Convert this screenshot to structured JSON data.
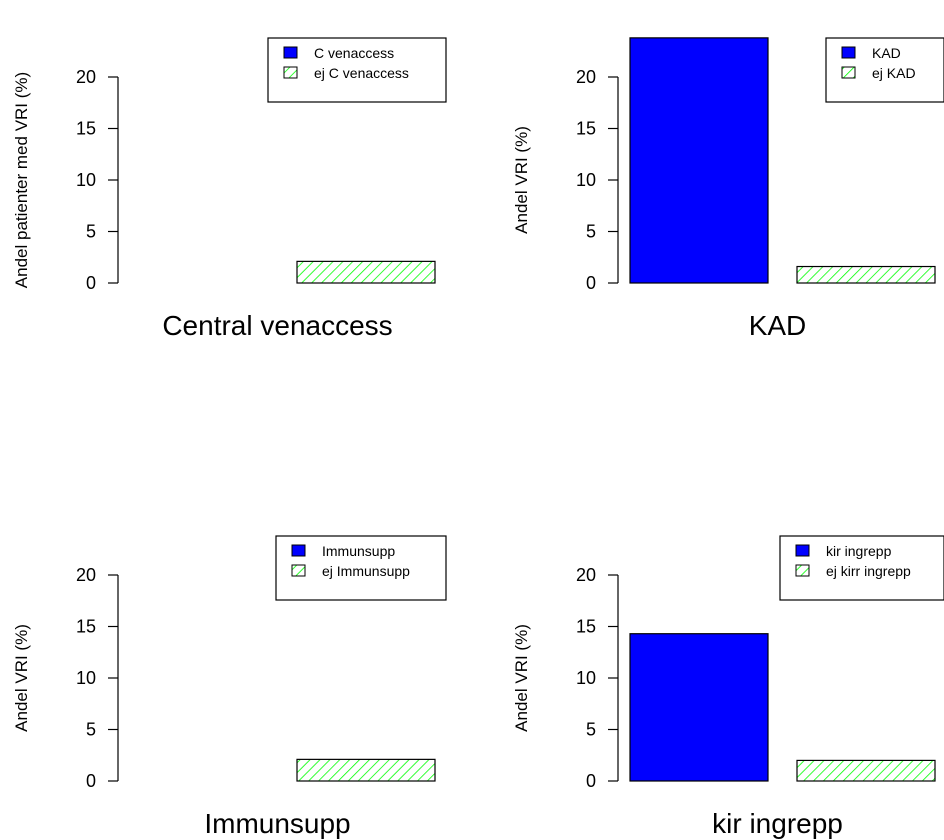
{
  "chart_data": [
    {
      "type": "bar",
      "title": "",
      "xlabel": "Central venaccess",
      "ylabel": "Andel patienter med VRI (%)",
      "ylim": [
        0,
        24
      ],
      "yticks": [
        0,
        5,
        10,
        15,
        20
      ],
      "grid": false,
      "legend_position": "top-right",
      "series": [
        {
          "name": "C venaccess",
          "value": 0,
          "color": "#0000ff",
          "pattern": "solid"
        },
        {
          "name": "ej C venaccess",
          "value": 2.1,
          "color": "#00ff00",
          "pattern": "hatch"
        }
      ]
    },
    {
      "type": "bar",
      "title": "",
      "xlabel": "KAD",
      "ylabel": "Andel VRI (%)",
      "ylim": [
        0,
        24
      ],
      "yticks": [
        0,
        5,
        10,
        15,
        20
      ],
      "grid": false,
      "legend_position": "top-right",
      "series": [
        {
          "name": "KAD",
          "value": 23.8,
          "color": "#0000ff",
          "pattern": "solid"
        },
        {
          "name": "ej KAD",
          "value": 1.6,
          "color": "#00ff00",
          "pattern": "hatch"
        }
      ]
    },
    {
      "type": "bar",
      "title": "",
      "xlabel": "Immunsupp",
      "ylabel": "Andel VRI (%)",
      "ylim": [
        0,
        24
      ],
      "yticks": [
        0,
        5,
        10,
        15,
        20
      ],
      "grid": false,
      "legend_position": "top-right",
      "series": [
        {
          "name": "Immunsupp",
          "value": 0,
          "color": "#0000ff",
          "pattern": "solid"
        },
        {
          "name": "ej Immunsupp",
          "value": 2.1,
          "color": "#00ff00",
          "pattern": "hatch"
        }
      ]
    },
    {
      "type": "bar",
      "title": "",
      "xlabel": "kir ingrepp",
      "ylabel": "Andel VRI (%)",
      "ylim": [
        0,
        24
      ],
      "yticks": [
        0,
        5,
        10,
        15,
        20
      ],
      "grid": false,
      "legend_position": "top-right",
      "series": [
        {
          "name": "kir ingrepp",
          "value": 14.3,
          "color": "#0000ff",
          "pattern": "solid"
        },
        {
          "name": "ej kirr ingrepp",
          "value": 2.0,
          "color": "#00ff00",
          "pattern": "hatch"
        }
      ]
    }
  ]
}
